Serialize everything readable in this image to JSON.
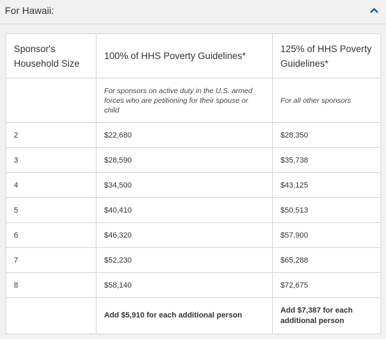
{
  "header": {
    "title": "For Hawaii:"
  },
  "table": {
    "columns": [
      "Sponsor's Household Size",
      "100% of HHS Poverty Guidelines*",
      "125% of HHS Poverty Guidelines*"
    ],
    "notes": [
      "For sponsors on active duty in the U.S. armed forces who are petitioning for their spouse or child",
      "For all other sponsors"
    ],
    "rows": [
      [
        "2",
        "$22,680",
        "$28,350"
      ],
      [
        "3",
        "$28,590",
        "$35,738"
      ],
      [
        "4",
        "$34,500",
        "$43,125"
      ],
      [
        "5",
        "$40,410",
        "$50,513"
      ],
      [
        "6",
        "$46,320",
        "$57,900"
      ],
      [
        "7",
        "$52,230",
        "$65,288"
      ],
      [
        "8",
        "$58,140",
        "$72,675"
      ]
    ],
    "footer": [
      "Add $5,910 for each additional person",
      "Add $7,387 for each additional person"
    ]
  }
}
